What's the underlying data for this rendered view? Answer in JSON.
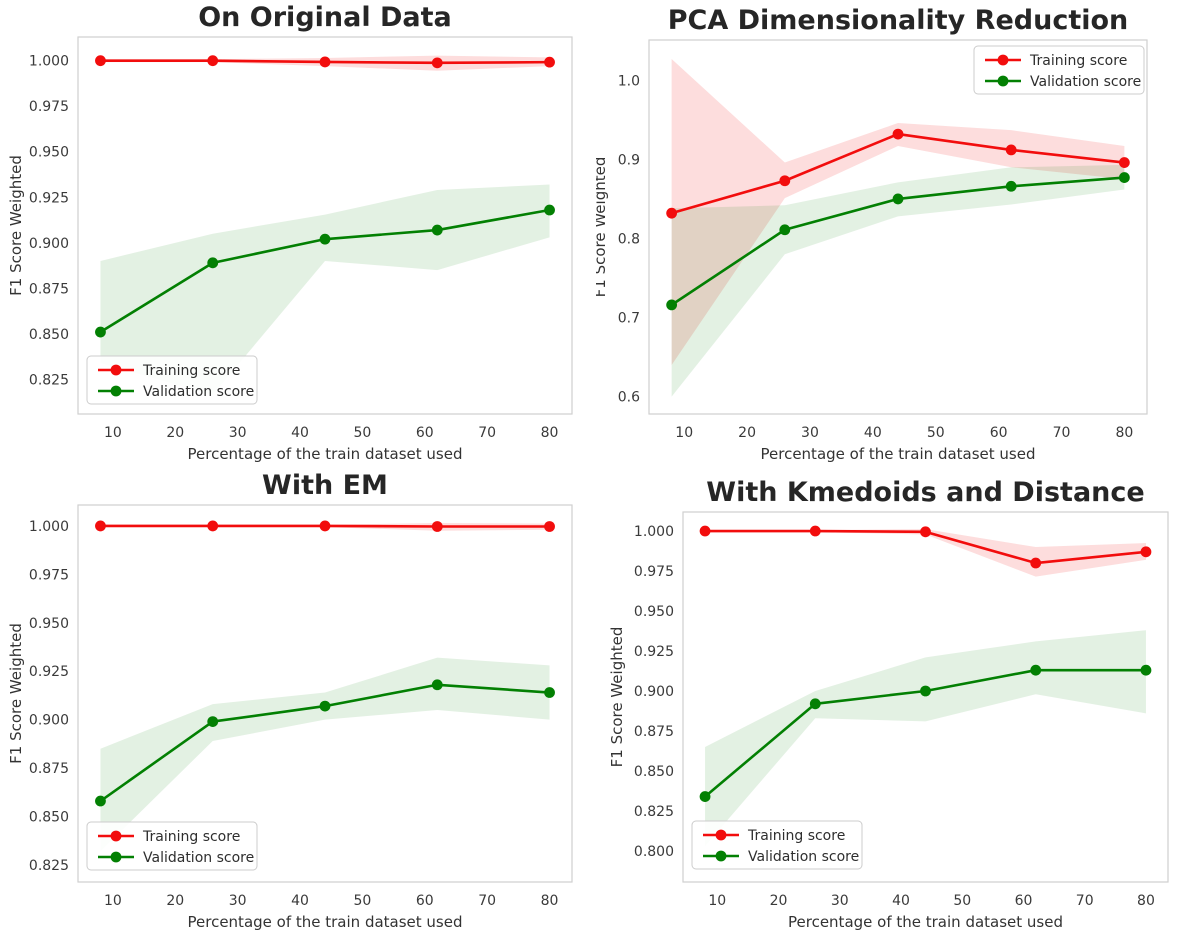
{
  "figure": {
    "background": "#ffffff"
  },
  "colors": {
    "training": "#f20d0d",
    "validation": "#038003",
    "training_band": "rgba(242,13,13,0.14)",
    "validation_band": "rgba(3,128,3,0.11)",
    "title": "#262626",
    "tick": "#3a3a3a",
    "spine": "#cfcfcf",
    "legend_border": "#cccccc"
  },
  "legend": {
    "training_label": "Training score",
    "validation_label": "Validation score"
  },
  "chart_data": [
    {
      "type": "line",
      "title": "On Original Data",
      "xlabel": "Percentage of the train dataset used",
      "ylabel": "F1 Score Weighted",
      "x": [
        8,
        26,
        44,
        62,
        80
      ],
      "xlim": [
        4.4,
        83.6
      ],
      "ylim": [
        0.806,
        1.013
      ],
      "xtick_values": [
        10,
        20,
        30,
        40,
        50,
        60,
        70,
        80
      ],
      "xtick_labels": [
        "10",
        "20",
        "30",
        "40",
        "50",
        "60",
        "70",
        "80"
      ],
      "ytick_values": [
        0.825,
        0.85,
        0.875,
        0.9,
        0.925,
        0.95,
        0.975,
        1.0
      ],
      "ytick_labels": [
        "0.825",
        "0.850",
        "0.875",
        "0.900",
        "0.925",
        "0.950",
        "0.975",
        "1.000"
      ],
      "legend_loc": "lower-left",
      "series": [
        {
          "name": "Training score",
          "color": "#f20d0d",
          "band_color": "rgba(242,13,13,0.14)",
          "values": [
            1.0,
            1.0,
            0.9993,
            0.9988,
            0.9992
          ],
          "band_upper": [
            1.0008,
            1.0008,
            1.0015,
            1.0028,
            1.0018
          ],
          "band_lower": [
            0.9992,
            0.9992,
            0.997,
            0.9945,
            0.997
          ]
        },
        {
          "name": "Validation score",
          "color": "#038003",
          "band_color": "rgba(3,128,3,0.11)",
          "values": [
            0.851,
            0.889,
            0.902,
            0.907,
            0.918
          ],
          "band_upper": [
            0.89,
            0.905,
            0.9155,
            0.929,
            0.932
          ],
          "band_lower": [
            0.834,
            0.8165,
            0.89,
            0.885,
            0.903
          ]
        }
      ]
    },
    {
      "type": "line",
      "title": "PCA Dimensionality Reduction",
      "xlabel": "Percentage of the train dataset used",
      "ylabel": "F1 Score Weighted",
      "x": [
        8,
        26,
        44,
        62,
        80
      ],
      "xlim": [
        4.4,
        83.6
      ],
      "ylim": [
        0.578,
        1.051
      ],
      "xtick_values": [
        10,
        20,
        30,
        40,
        50,
        60,
        70,
        80
      ],
      "xtick_labels": [
        "10",
        "20",
        "30",
        "40",
        "50",
        "60",
        "70",
        "80"
      ],
      "ytick_values": [
        0.6,
        0.7,
        0.8,
        0.9,
        1.0
      ],
      "ytick_labels": [
        "0.6",
        "0.7",
        "0.8",
        "0.9",
        "1.0"
      ],
      "legend_loc": "upper-right",
      "series": [
        {
          "name": "Training score",
          "color": "#f20d0d",
          "band_color": "rgba(242,13,13,0.14)",
          "values": [
            0.832,
            0.873,
            0.932,
            0.912,
            0.896
          ],
          "band_upper": [
            1.027,
            0.896,
            0.946,
            0.937,
            0.917
          ],
          "band_lower": [
            0.64,
            0.851,
            0.917,
            0.89,
            0.875
          ]
        },
        {
          "name": "Validation score",
          "color": "#038003",
          "band_color": "rgba(3,128,3,0.11)",
          "values": [
            0.716,
            0.811,
            0.85,
            0.866,
            0.877
          ],
          "band_upper": [
            0.838,
            0.842,
            0.871,
            0.89,
            0.893
          ],
          "band_lower": [
            0.6,
            0.78,
            0.828,
            0.843,
            0.862
          ]
        }
      ]
    },
    {
      "type": "line",
      "title": "With EM",
      "xlabel": "Percentage of the train dataset used",
      "ylabel": "F1 Score Weighted",
      "x": [
        8,
        26,
        44,
        62,
        80
      ],
      "xlim": [
        4.4,
        83.6
      ],
      "ylim": [
        0.8162,
        1.0108
      ],
      "xtick_values": [
        10,
        20,
        30,
        40,
        50,
        60,
        70,
        80
      ],
      "xtick_labels": [
        "10",
        "20",
        "30",
        "40",
        "50",
        "60",
        "70",
        "80"
      ],
      "ytick_values": [
        0.825,
        0.85,
        0.875,
        0.9,
        0.925,
        0.95,
        0.975,
        1.0
      ],
      "ytick_labels": [
        "0.825",
        "0.850",
        "0.875",
        "0.900",
        "0.925",
        "0.950",
        "0.975",
        "1.000"
      ],
      "legend_loc": "lower-left",
      "series": [
        {
          "name": "Training score",
          "color": "#f20d0d",
          "band_color": "rgba(242,13,13,0.14)",
          "values": [
            1.0,
            1.0,
            1.0,
            0.9997,
            0.9997
          ],
          "band_upper": [
            1.0006,
            1.0006,
            1.0006,
            1.0015,
            1.0012
          ],
          "band_lower": [
            0.9994,
            0.9994,
            0.9994,
            0.9975,
            0.998
          ]
        },
        {
          "name": "Validation score",
          "color": "#038003",
          "band_color": "rgba(3,128,3,0.11)",
          "values": [
            0.858,
            0.899,
            0.907,
            0.918,
            0.914
          ],
          "band_upper": [
            0.885,
            0.908,
            0.914,
            0.932,
            0.928
          ],
          "band_lower": [
            0.832,
            0.889,
            0.9,
            0.905,
            0.9
          ]
        }
      ]
    },
    {
      "type": "line",
      "title": "With Kmedoids and Distance",
      "xlabel": "Percentage of the train dataset used",
      "ylabel": "F1 Score Weighted",
      "x": [
        8,
        26,
        44,
        62,
        80
      ],
      "xlim": [
        4.4,
        83.6
      ],
      "ylim": [
        0.7806,
        1.0119
      ],
      "xtick_values": [
        10,
        20,
        30,
        40,
        50,
        60,
        70,
        80
      ],
      "xtick_labels": [
        "10",
        "20",
        "30",
        "40",
        "50",
        "60",
        "70",
        "80"
      ],
      "ytick_values": [
        0.8,
        0.825,
        0.85,
        0.875,
        0.9,
        0.925,
        0.95,
        0.975,
        1.0
      ],
      "ytick_labels": [
        "0.800",
        "0.825",
        "0.850",
        "0.875",
        "0.900",
        "0.925",
        "0.950",
        "0.975",
        "1.000"
      ],
      "legend_loc": "lower-left",
      "series": [
        {
          "name": "Training score",
          "color": "#f20d0d",
          "band_color": "rgba(242,13,13,0.14)",
          "values": [
            1.0,
            1.0,
            0.9995,
            0.98,
            0.987
          ],
          "band_upper": [
            1.0006,
            1.0006,
            1.0012,
            0.99,
            0.9925
          ],
          "band_lower": [
            0.9994,
            0.9994,
            0.9978,
            0.9715,
            0.982
          ]
        },
        {
          "name": "Validation score",
          "color": "#038003",
          "band_color": "rgba(3,128,3,0.11)",
          "values": [
            0.834,
            0.892,
            0.9,
            0.913,
            0.913
          ],
          "band_upper": [
            0.865,
            0.9,
            0.921,
            0.931,
            0.938
          ],
          "band_lower": [
            0.803,
            0.883,
            0.881,
            0.898,
            0.886
          ]
        }
      ]
    }
  ]
}
